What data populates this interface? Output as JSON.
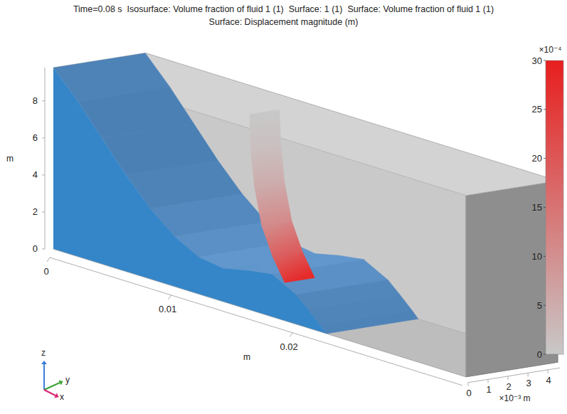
{
  "chart_data": {
    "type": "surface3d",
    "title": "Time=0.08 s  Isosurface: Volume fraction of fluid 1 (1)  Surface: 1 (1)  Surface: Volume fraction of fluid 1 (1)",
    "subtitle": "Surface: Displacement magnitude (m)",
    "xlabel": "m",
    "ylabel": "×10⁻³ m",
    "zlabel": "m",
    "xlim": [
      0,
      0.034
    ],
    "xticks": [
      0,
      0.01,
      0.02
    ],
    "ylim": [
      0,
      4.6
    ],
    "yticks": [
      0,
      1,
      2,
      3,
      4
    ],
    "zlim": [
      0,
      9.8
    ],
    "zticks": [
      0,
      2,
      4,
      6,
      8
    ],
    "free_surface": {
      "x": [
        0,
        0.002,
        0.004,
        0.006,
        0.008,
        0.01,
        0.012,
        0.014,
        0.016,
        0.018,
        0.02,
        0.021,
        0.022,
        0.0225
      ],
      "z": [
        9.8,
        8.4,
        6.8,
        5.2,
        3.8,
        2.7,
        2.0,
        1.8,
        2.1,
        2.3,
        1.6,
        1.0,
        0.35,
        0
      ]
    },
    "plate": {
      "x": [
        0.0137,
        0.0138,
        0.0141,
        0.0147,
        0.0156,
        0.0166
      ],
      "z": [
        9.8,
        8,
        6,
        4,
        2.5,
        1.3
      ],
      "y": [
        1.5,
        3.0
      ],
      "displacement": [
        0,
        1.5,
        5,
        11,
        19,
        28
      ]
    },
    "colorbar": {
      "lim": [
        0,
        30
      ],
      "ticks": [
        0,
        5,
        10,
        15,
        20,
        25,
        30
      ],
      "label": "×10⁻⁴"
    },
    "triad": {
      "x": "x",
      "y": "y",
      "z": "z"
    }
  }
}
